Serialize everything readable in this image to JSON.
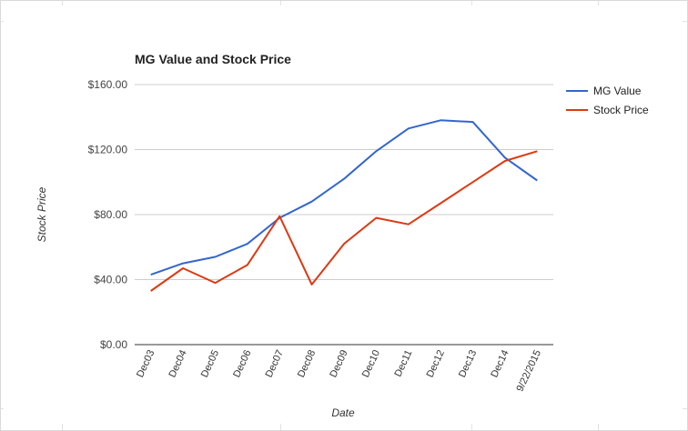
{
  "chart_data": {
    "type": "line",
    "title": "MG Value and Stock Price",
    "xlabel": "Date",
    "ylabel": "Stock Price",
    "categories": [
      "Dec03",
      "Dec04",
      "Dec05",
      "Dec06",
      "Dec07",
      "Dec08",
      "Dec09",
      "Dec10",
      "Dec11",
      "Dec12",
      "Dec13",
      "Dec14",
      "9/22/2015"
    ],
    "yticks": [
      "$0.00",
      "$40.00",
      "$80.00",
      "$120.00",
      "$160.00"
    ],
    "ytick_values": [
      0,
      40,
      80,
      120,
      160
    ],
    "ylim": [
      0,
      160
    ],
    "grid": true,
    "legend_position": "right",
    "series": [
      {
        "name": "MG Value",
        "color": "#3366cc",
        "values": [
          43,
          50,
          54,
          62,
          78,
          88,
          102,
          119,
          133,
          138,
          137,
          115,
          101
        ]
      },
      {
        "name": "Stock Price",
        "color": "#dc3912",
        "values": [
          33,
          47,
          38,
          49,
          79,
          37,
          62,
          78,
          74,
          87,
          100,
          113,
          119
        ]
      }
    ]
  }
}
